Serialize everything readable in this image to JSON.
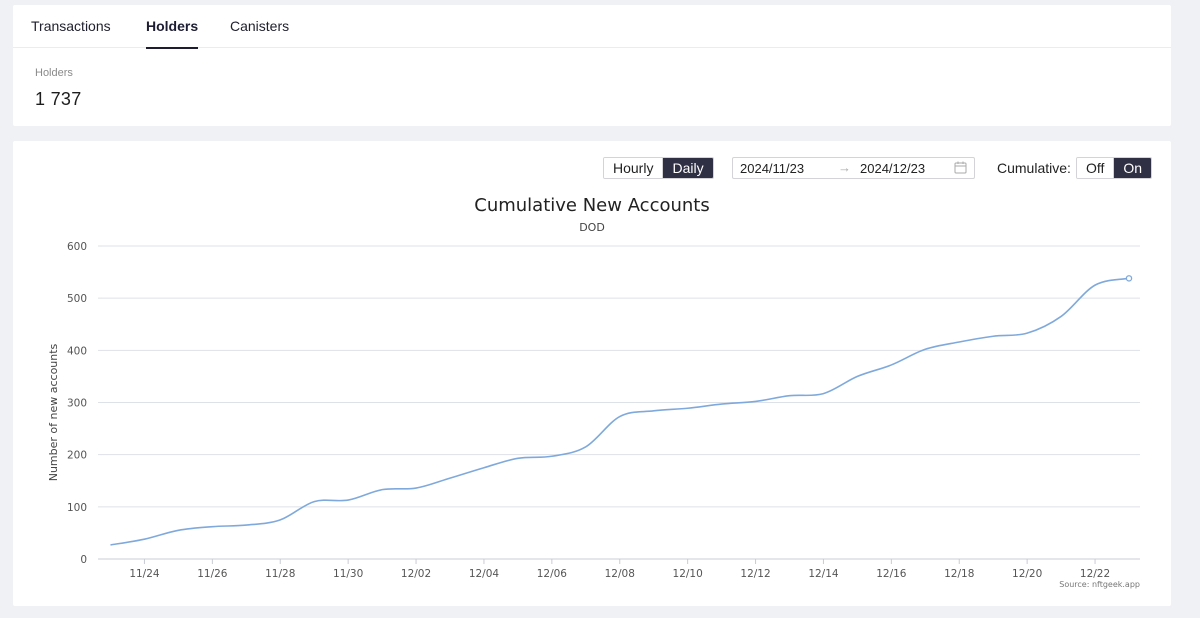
{
  "tabs": [
    {
      "label": "Transactions",
      "active": false
    },
    {
      "label": "Holders",
      "active": true
    },
    {
      "label": "Canisters",
      "active": false
    }
  ],
  "summary": {
    "label": "Holders",
    "value": "1 737"
  },
  "controls": {
    "granularity": {
      "options": [
        "Hourly",
        "Daily"
      ],
      "selected": "Daily"
    },
    "date_range": {
      "start": "2024/11/23",
      "end": "2024/12/23"
    },
    "cumulative": {
      "label": "Cumulative:",
      "options": [
        "Off",
        "On"
      ],
      "selected": "On"
    }
  },
  "colors": {
    "line": "#7fa9dc",
    "active_button": "#2f3044",
    "grid": "#dde1e8"
  },
  "chart_data": {
    "type": "line",
    "title": "Cumulative New Accounts",
    "subtitle": "DOD",
    "xlabel": "",
    "ylabel": "Number of new accounts",
    "source": "Source: nftgeek.app",
    "ylim": [
      0,
      600
    ],
    "yticks": [
      0,
      100,
      200,
      300,
      400,
      500,
      600
    ],
    "xticks": [
      "11/24",
      "11/26",
      "11/28",
      "11/30",
      "12/02",
      "12/04",
      "12/06",
      "12/08",
      "12/10",
      "12/12",
      "12/14",
      "12/16",
      "12/18",
      "12/20",
      "12/22"
    ],
    "x": [
      "11/23",
      "11/24",
      "11/25",
      "11/26",
      "11/27",
      "11/28",
      "11/29",
      "11/30",
      "12/01",
      "12/02",
      "12/03",
      "12/04",
      "12/05",
      "12/06",
      "12/07",
      "12/08",
      "12/09",
      "12/10",
      "12/11",
      "12/12",
      "12/13",
      "12/14",
      "12/15",
      "12/16",
      "12/17",
      "12/18",
      "12/19",
      "12/20",
      "12/21",
      "12/22",
      "12/23"
    ],
    "series": [
      {
        "name": "DOD",
        "values": [
          27,
          38,
          55,
          62,
          65,
          75,
          110,
          113,
          133,
          136,
          155,
          175,
          193,
          197,
          215,
          273,
          284,
          289,
          297,
          302,
          313,
          317,
          350,
          372,
          402,
          416,
          427,
          433,
          465,
          525,
          538
        ]
      }
    ]
  }
}
